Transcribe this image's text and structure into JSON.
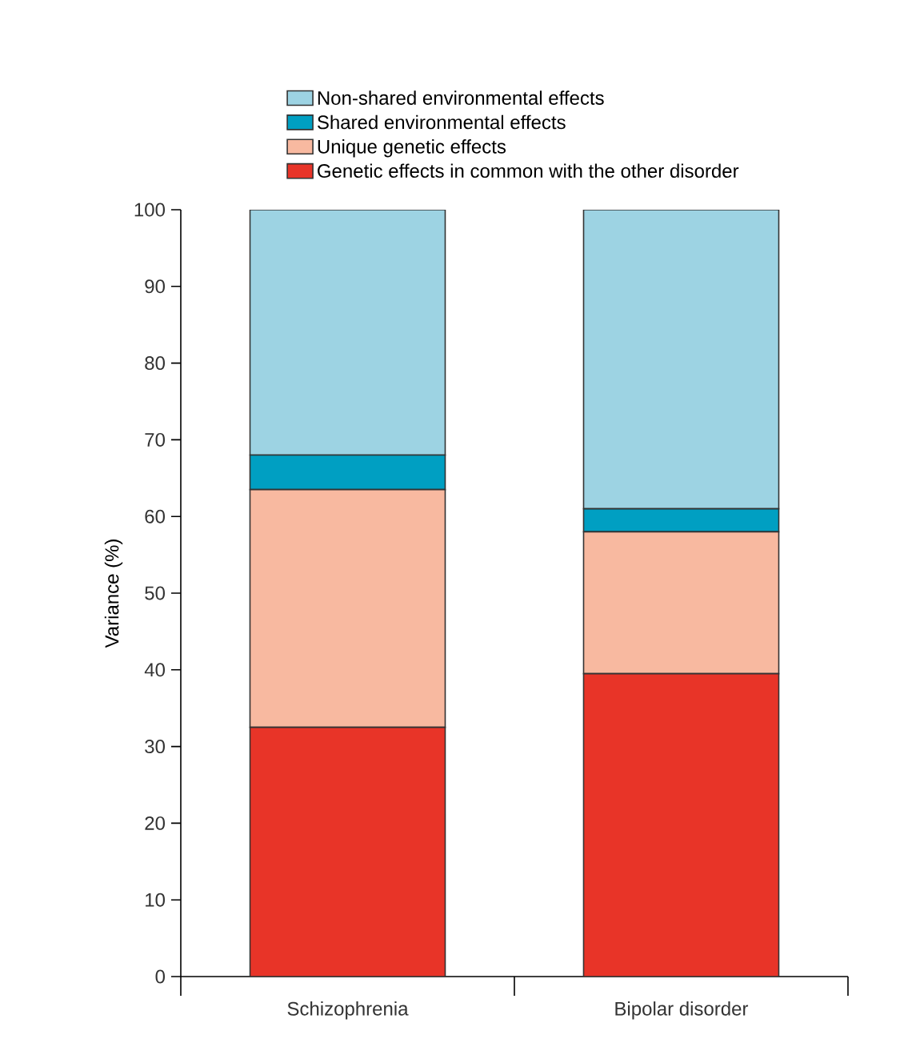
{
  "chart_data": {
    "type": "bar",
    "stacked": true,
    "ylabel": "Variance (%)",
    "categories": [
      "Schizophrenia",
      "Bipolar disorder"
    ],
    "series": [
      {
        "name": "Genetic effects in common with the other disorder",
        "color": "#e83428",
        "values": [
          32.5,
          39.5
        ]
      },
      {
        "name": "Unique genetic effects",
        "color": "#f8b9a0",
        "values": [
          31,
          18.5
        ]
      },
      {
        "name": "Shared environmental effects",
        "color": "#009fc2",
        "values": [
          4.5,
          3
        ]
      },
      {
        "name": "Non-shared environmental effects",
        "color": "#9dd3e3",
        "values": [
          32,
          39
        ]
      }
    ],
    "ylim": [
      0,
      100
    ],
    "yticks": [
      0,
      10,
      20,
      30,
      40,
      50,
      60,
      70,
      80,
      90,
      100
    ],
    "legend": "top"
  }
}
